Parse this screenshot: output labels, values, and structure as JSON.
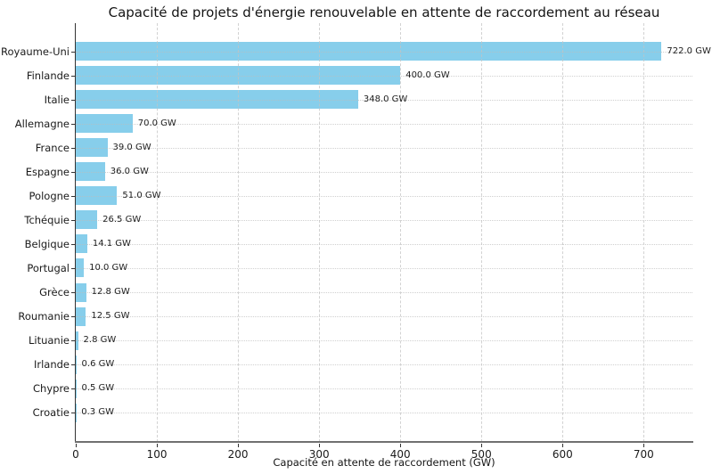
{
  "chart_data": {
    "type": "bar",
    "orientation": "horizontal",
    "title": "Capacité de projets d'énergie renouvelable en attente de raccordement au réseau",
    "xlabel": "Capacité en attente de raccordement (GW)",
    "ylabel": "",
    "categories": [
      "Royaume-Uni",
      "Finlande",
      "Italie",
      "Allemagne",
      "France",
      "Espagne",
      "Pologne",
      "Tchéquie",
      "Belgique",
      "Portugal",
      "Grèce",
      "Roumanie",
      "Lituanie",
      "Irlande",
      "Chypre",
      "Croatie"
    ],
    "values": [
      722.0,
      400.0,
      348.0,
      70.0,
      39.0,
      36.0,
      51.0,
      26.5,
      14.1,
      10.0,
      12.8,
      12.5,
      2.8,
      0.6,
      0.5,
      0.3
    ],
    "value_labels": [
      "722.0 GW",
      "400.0 GW",
      "348.0 GW",
      "70.0 GW",
      "39.0 GW",
      "36.0 GW",
      "51.0 GW",
      "26.5 GW",
      "14.1 GW",
      "10.0 GW",
      "12.8 GW",
      "12.5 GW",
      "2.8 GW",
      "0.6 GW",
      "0.5 GW",
      "0.3 GW"
    ],
    "xticks": [
      0,
      100,
      200,
      300,
      400,
      500,
      600,
      700
    ],
    "xtick_labels": [
      "0",
      "100",
      "200",
      "300",
      "400",
      "500",
      "600",
      "700"
    ],
    "xlim": [
      0,
      760
    ],
    "grid": true,
    "legend": null,
    "colors": {
      "bar": "#87CEEB",
      "grid": "#c4c4c4",
      "text": "#1a1a1a",
      "spine_left": "#333333",
      "spine_bottom": "#707070",
      "background": "#ffffff"
    }
  }
}
